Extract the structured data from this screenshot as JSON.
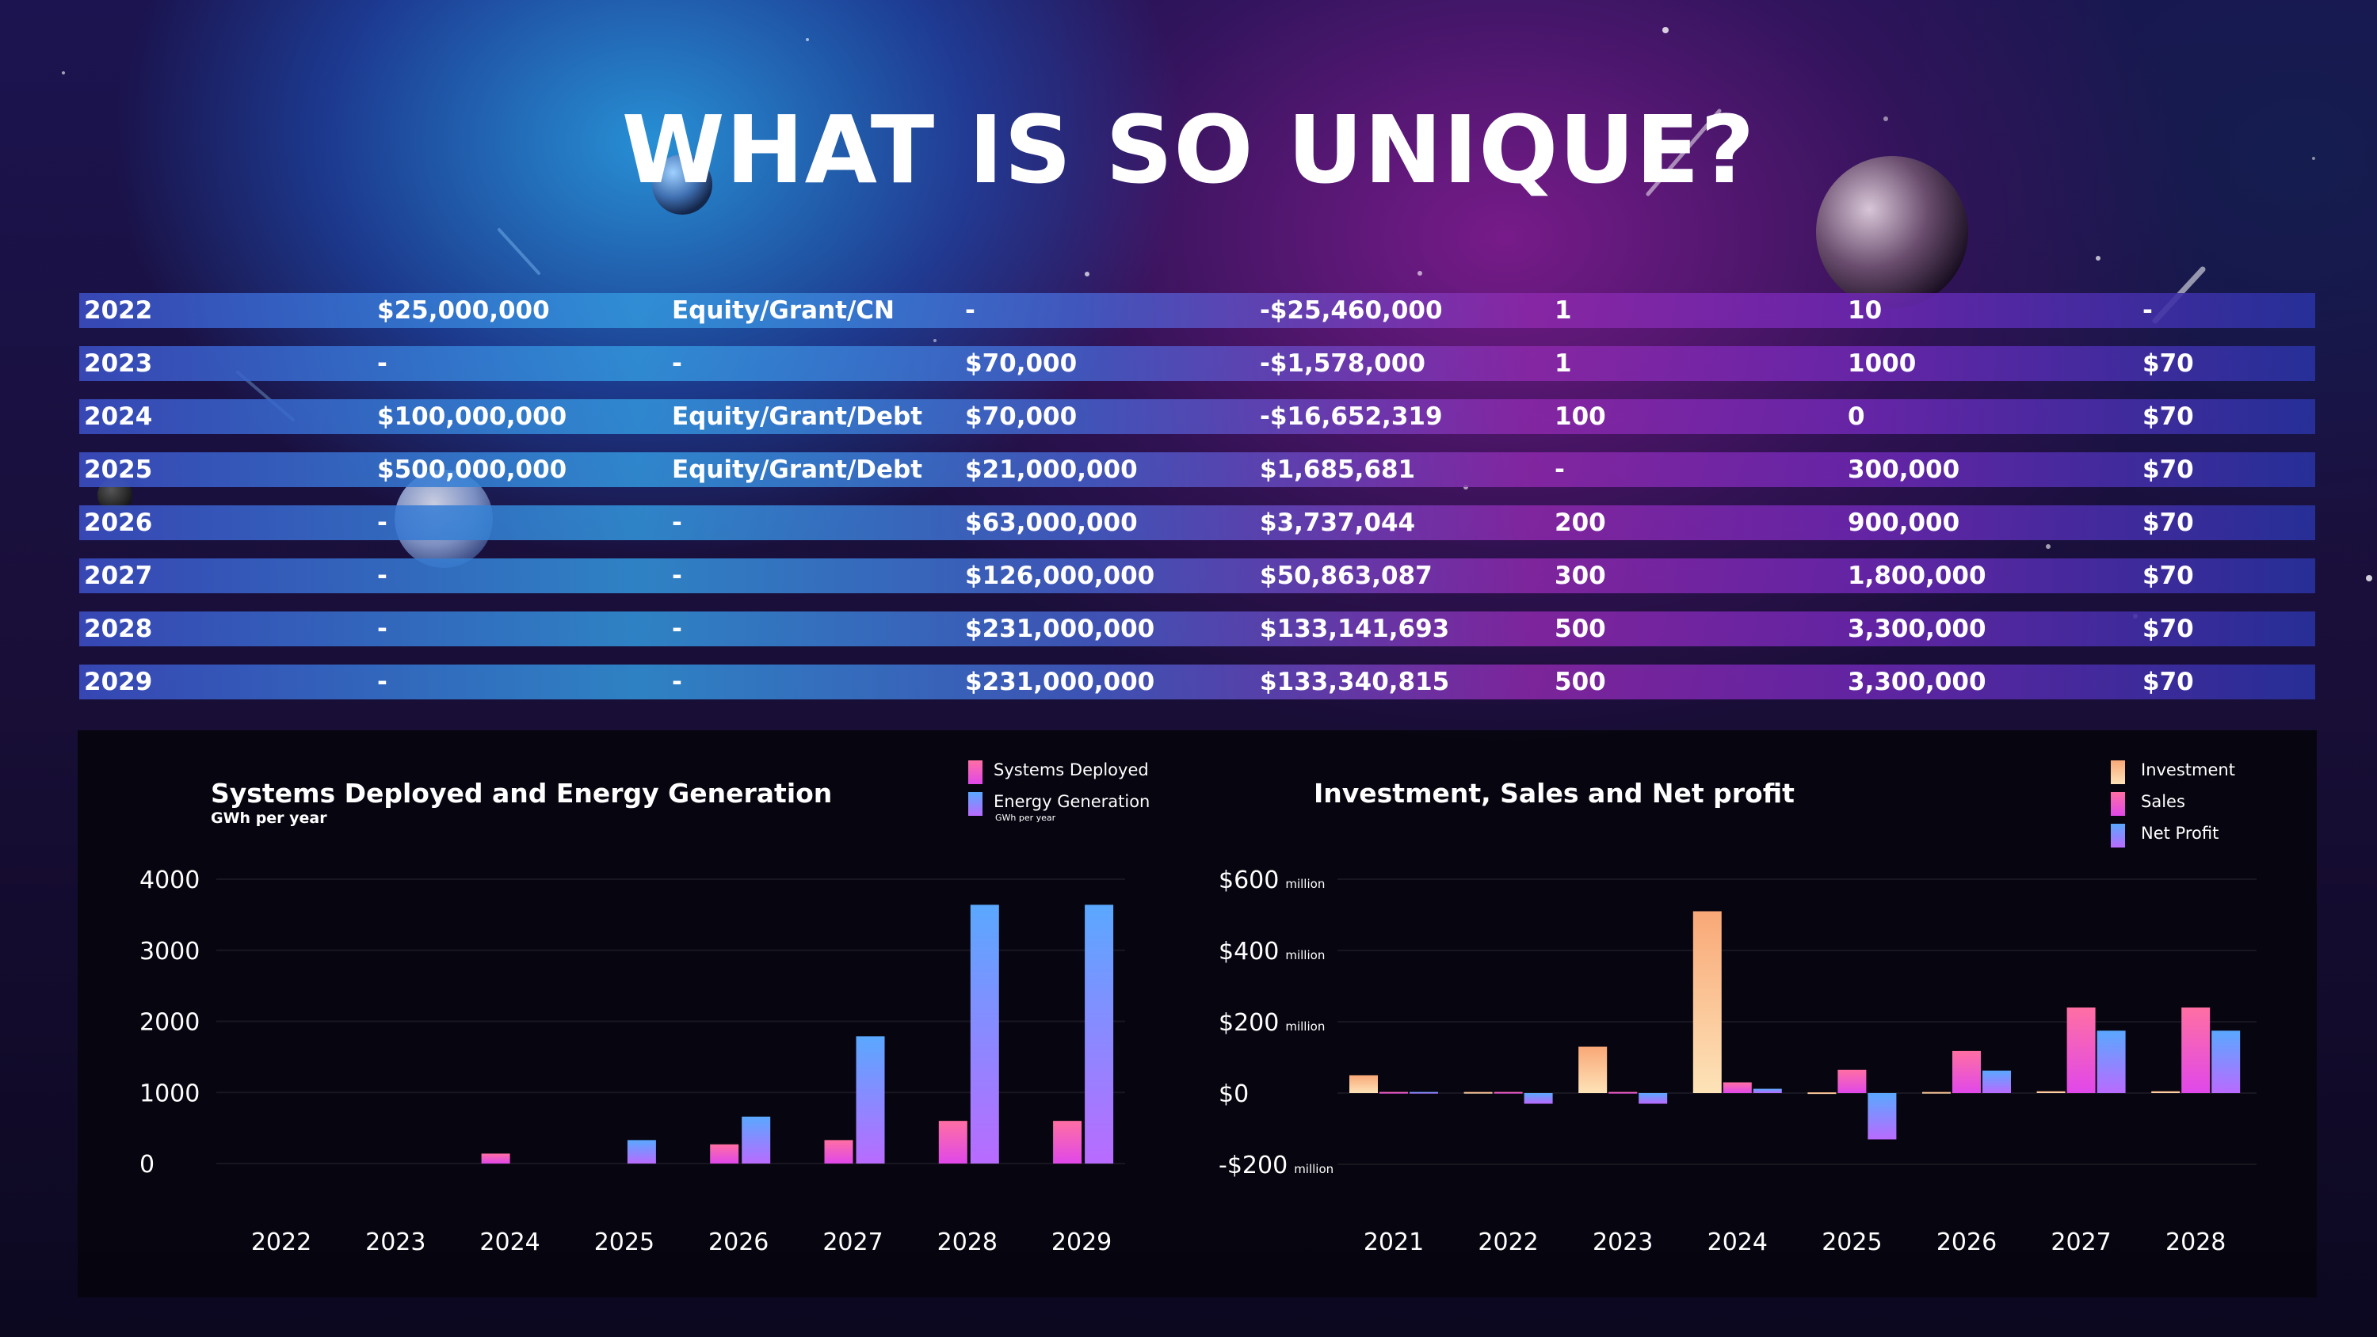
{
  "header": {
    "title": "WHAT IS SO UNIQUE?"
  },
  "table": {
    "rows": [
      [
        "2022",
        "$25,000,000",
        "Equity/Grant/CN",
        "-",
        "-$25,460,000",
        "1",
        "10",
        "-"
      ],
      [
        "2023",
        "-",
        "-",
        "$70,000",
        "-$1,578,000",
        "1",
        "1000",
        "$70"
      ],
      [
        "2024",
        "$100,000,000",
        "Equity/Grant/Debt",
        "$70,000",
        "-$16,652,319",
        "100",
        "0",
        "$70"
      ],
      [
        "2025",
        "$500,000,000",
        "Equity/Grant/Debt",
        "$21,000,000",
        "$1,685,681",
        "-",
        "300,000",
        "$70"
      ],
      [
        "2026",
        "-",
        "-",
        "$63,000,000",
        "$3,737,044",
        "200",
        "900,000",
        "$70"
      ],
      [
        "2027",
        "-",
        "-",
        "$126,000,000",
        "$50,863,087",
        "300",
        "1,800,000",
        "$70"
      ],
      [
        "2028",
        "-",
        "-",
        "$231,000,000",
        "$133,141,693",
        "500",
        "3,300,000",
        "$70"
      ],
      [
        "2029",
        "-",
        "-",
        "$231,000,000",
        "$133,340,815",
        "500",
        "3,300,000",
        "$70"
      ]
    ]
  },
  "colors": {
    "pink_top": "#ff6fa3",
    "pink_bottom": "#e048ea",
    "blue_top": "#5aa8ff",
    "blue_bottom": "#b96bff",
    "peach_top": "#f9a877",
    "peach_bottom": "#fde3b8"
  },
  "chart_data": [
    {
      "type": "bar",
      "title": "Systems Deployed and Energy Generation",
      "subtitle": "GWh per year",
      "categories": [
        "2022",
        "2023",
        "2024",
        "2025",
        "2026",
        "2027",
        "2028",
        "2029"
      ],
      "series": [
        {
          "name": "Systems Deployed",
          "values": [
            0,
            0,
            140,
            0,
            270,
            330,
            600,
            600
          ]
        },
        {
          "name": "Energy Generation",
          "sublabel": "GWh per year",
          "values": [
            0,
            0,
            0,
            330,
            660,
            1790,
            3640,
            3640
          ]
        }
      ],
      "yticks": [
        "4000",
        "3000",
        "2000",
        "1000",
        "0"
      ],
      "ylim": [
        0,
        4000
      ],
      "grid": true,
      "legend": "top-right"
    },
    {
      "type": "bar",
      "title": "Investment, Sales and Net profit",
      "categories": [
        "2021",
        "2022",
        "2023",
        "2024",
        "2025",
        "2026",
        "2027",
        "2028"
      ],
      "series": [
        {
          "name": "Investment",
          "values": [
            50,
            3,
            130,
            510,
            2,
            3,
            5,
            5
          ]
        },
        {
          "name": "Sales",
          "values": [
            3,
            3,
            3,
            30,
            65,
            118,
            240,
            240
          ]
        },
        {
          "name": "Net Profit",
          "values": [
            3,
            -30,
            -30,
            12,
            -130,
            63,
            175,
            175
          ]
        }
      ],
      "yticks": [
        {
          "value": "$600",
          "unit": "million"
        },
        {
          "value": "$400",
          "unit": "million"
        },
        {
          "value": "$200",
          "unit": "million"
        },
        {
          "value": "$0",
          "unit": ""
        },
        {
          "value": "-$200",
          "unit": "million"
        }
      ],
      "ylim": [
        -200,
        600
      ],
      "grid": true,
      "legend": "top-right"
    }
  ]
}
